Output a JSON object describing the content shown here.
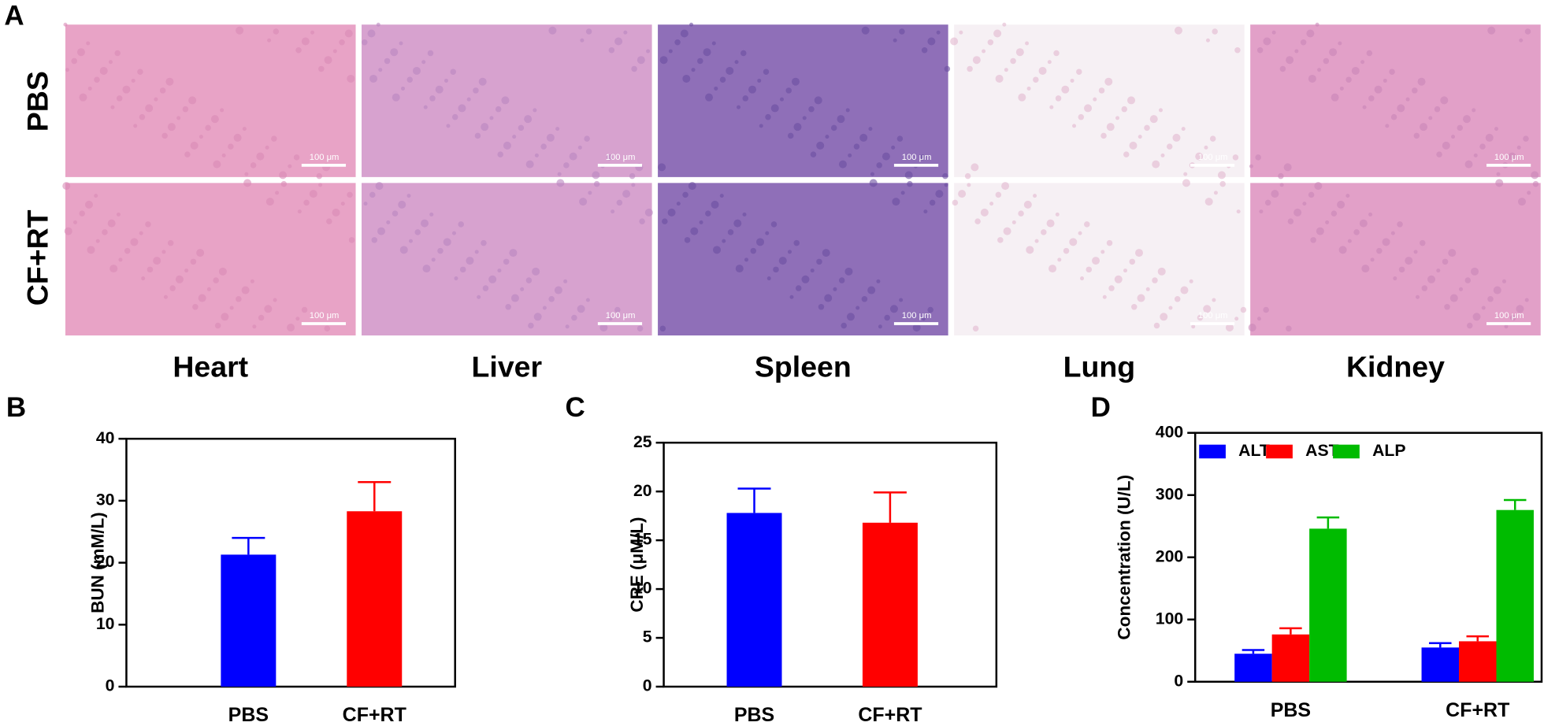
{
  "panel_labels": [
    "A",
    "B",
    "C",
    "D"
  ],
  "histology": {
    "rows": [
      "PBS",
      "CF+RT"
    ],
    "columns": [
      "Heart",
      "Liver",
      "Spleen",
      "Lung",
      "Kidney"
    ],
    "scale_bar": "100 μm"
  },
  "chart_data": [
    {
      "type": "bar",
      "ylabel": "BUN (mM/L)",
      "categories": [
        "PBS",
        "CF+RT"
      ],
      "values": [
        21.3,
        28.3
      ],
      "errors": [
        2.7,
        4.7
      ],
      "colors": [
        "#0000ff",
        "#ff0000"
      ],
      "ylim": [
        0,
        40
      ],
      "yticks": [
        0,
        10,
        20,
        30,
        40
      ]
    },
    {
      "type": "bar",
      "ylabel": "CRE (μM/L)",
      "categories": [
        "PBS",
        "CF+RT"
      ],
      "values": [
        17.8,
        16.8
      ],
      "errors": [
        2.5,
        3.1
      ],
      "colors": [
        "#0000ff",
        "#ff0000"
      ],
      "ylim": [
        0,
        25
      ],
      "yticks": [
        0,
        5,
        10,
        15,
        20,
        25
      ]
    },
    {
      "type": "grouped_bar",
      "ylabel": "Concentration (U/L)",
      "categories": [
        "PBS",
        "CF+RT"
      ],
      "series": [
        {
          "name": "ALT",
          "color": "#0000ff",
          "values": [
            45,
            55
          ],
          "errors": [
            6,
            7
          ]
        },
        {
          "name": "AST",
          "color": "#ff0000",
          "values": [
            76,
            65
          ],
          "errors": [
            10,
            8
          ]
        },
        {
          "name": "ALP",
          "color": "#00bb00",
          "values": [
            246,
            276
          ],
          "errors": [
            18,
            16
          ]
        }
      ],
      "ylim": [
        0,
        400
      ],
      "yticks": [
        0,
        100,
        200,
        300,
        400
      ],
      "legend": "top"
    }
  ]
}
